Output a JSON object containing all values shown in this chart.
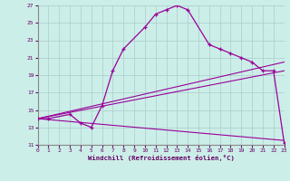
{
  "xlabel": "Windchill (Refroidissement éolien,°C)",
  "background_color": "#cceee8",
  "grid_color": "#aacccc",
  "line_color": "#990099",
  "xlim": [
    0,
    23
  ],
  "ylim": [
    11,
    27
  ],
  "yticks": [
    11,
    13,
    15,
    17,
    19,
    21,
    23,
    25,
    27
  ],
  "xticks": [
    0,
    1,
    2,
    3,
    4,
    5,
    6,
    7,
    8,
    9,
    10,
    11,
    12,
    13,
    14,
    15,
    16,
    17,
    18,
    19,
    20,
    21,
    22,
    23
  ],
  "line1_x": [
    0,
    1,
    3,
    4,
    5,
    6,
    7,
    8,
    10,
    11,
    12,
    13,
    14,
    16,
    17,
    18,
    19,
    20,
    21,
    22,
    23
  ],
  "line1_y": [
    14,
    14,
    14.5,
    13.5,
    13,
    15.5,
    19.5,
    22,
    24.5,
    26,
    26.5,
    27,
    26.5,
    22.5,
    22,
    21.5,
    21,
    20.5,
    19.5,
    19.5,
    11.2
  ],
  "line2_x": [
    0,
    23
  ],
  "line2_y": [
    14,
    20.5
  ],
  "line3_x": [
    0,
    23
  ],
  "line3_y": [
    14,
    19.5
  ],
  "line4_x": [
    0,
    23
  ],
  "line4_y": [
    14,
    11.5
  ]
}
